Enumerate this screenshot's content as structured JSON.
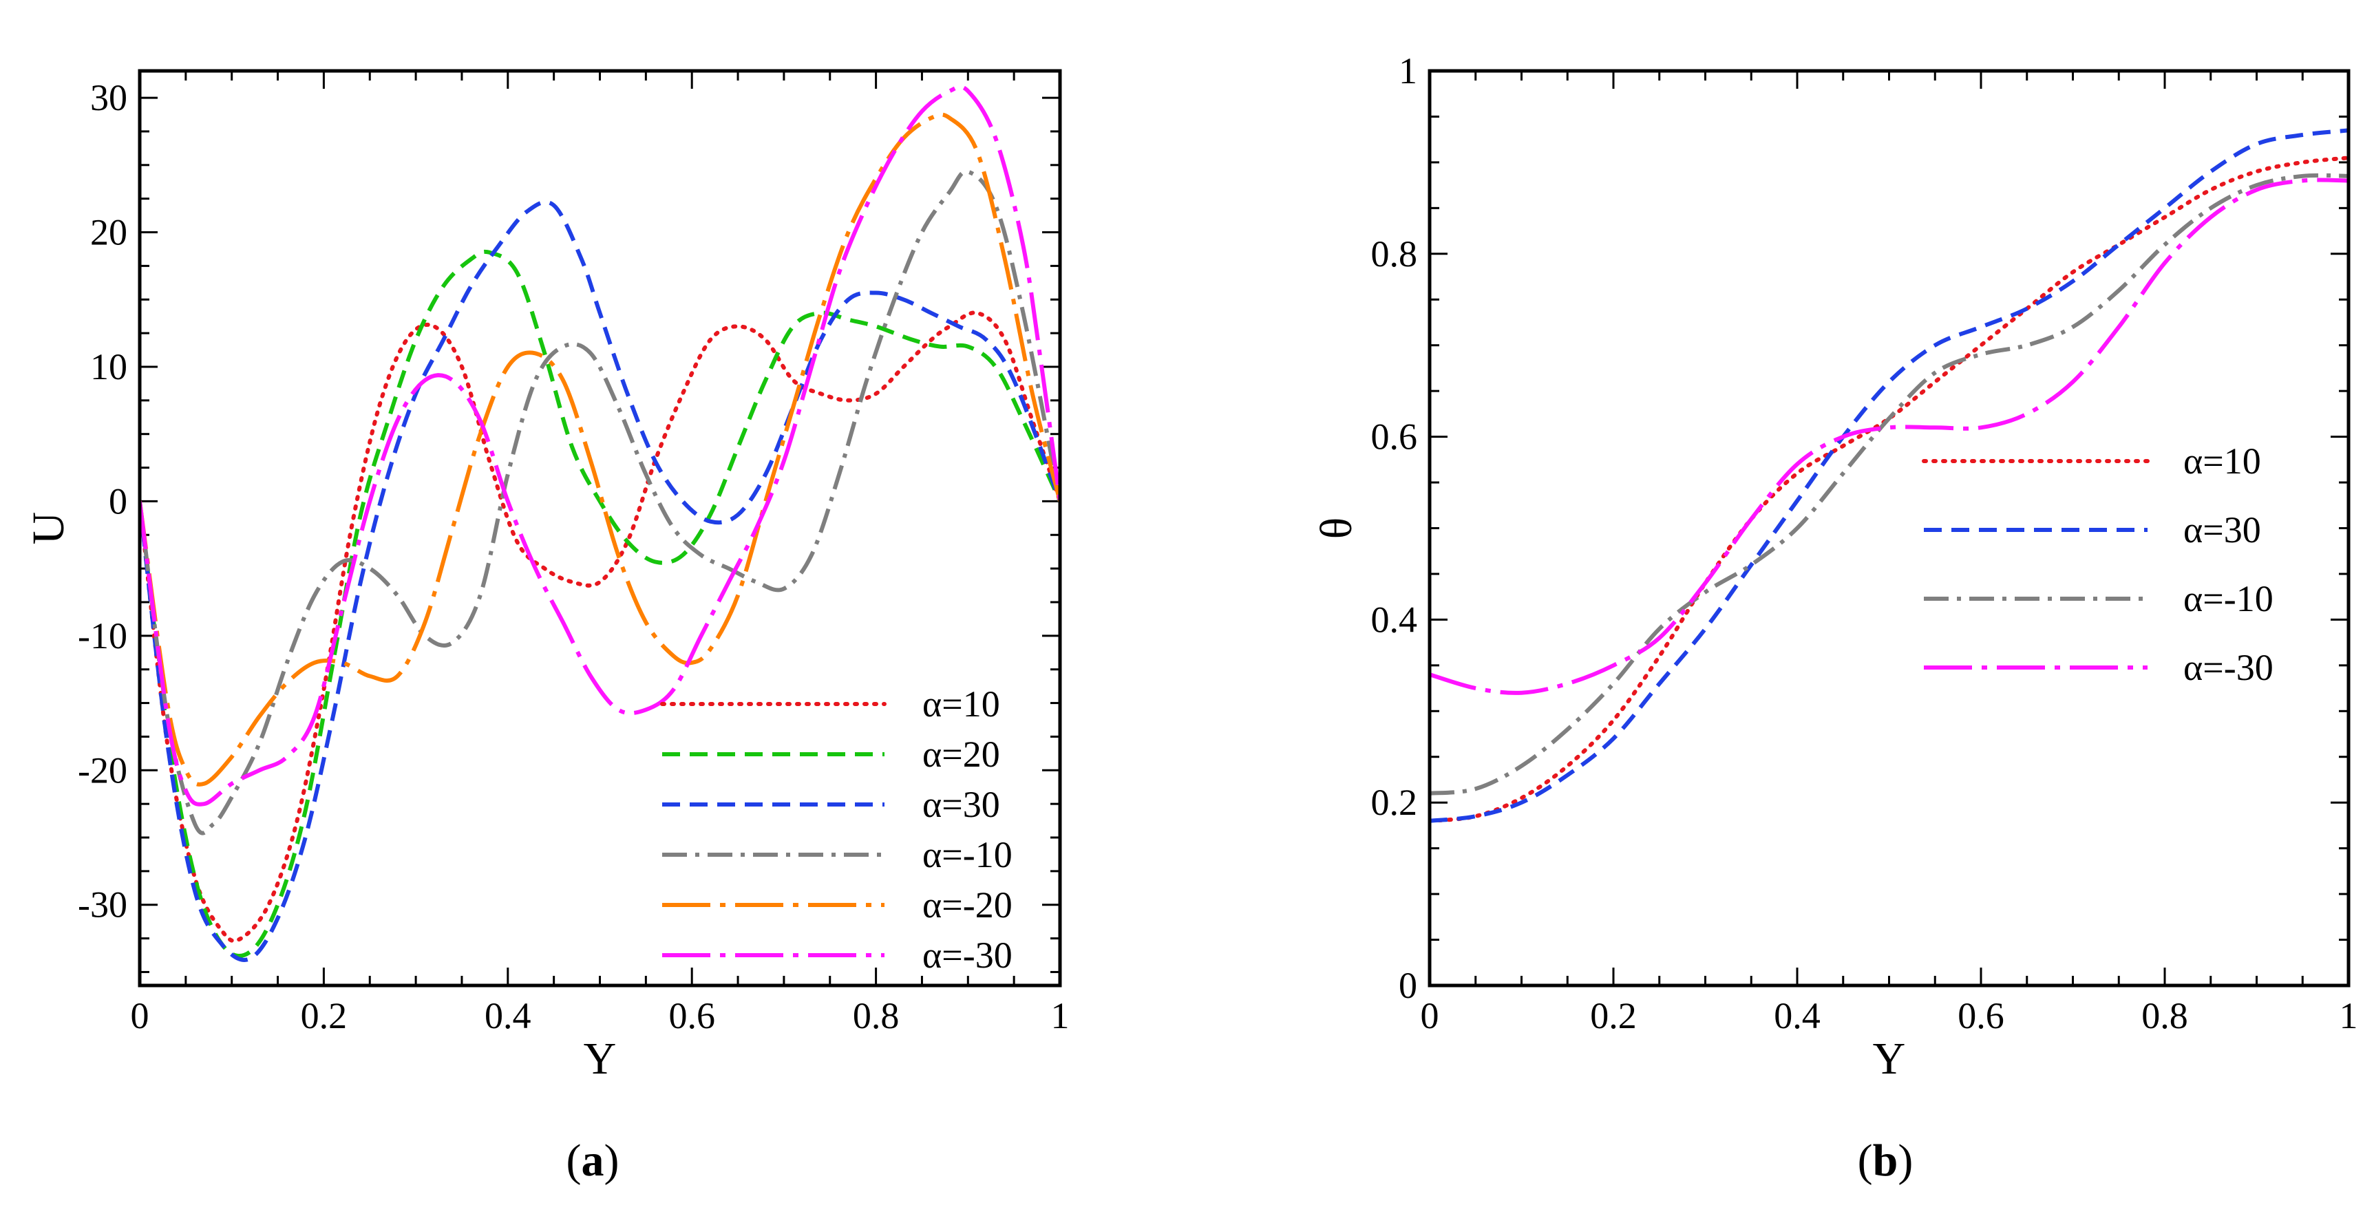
{
  "chart_data": [
    {
      "id": "a",
      "type": "line",
      "caption": {
        "open": "(",
        "letter": "a",
        "close": ")"
      },
      "xlabel": "Y",
      "ylabel": "U",
      "xlim": [
        0,
        1
      ],
      "ylim": [
        -36,
        32
      ],
      "xticks": [
        0,
        0.2,
        0.4,
        0.6,
        0.8,
        1
      ],
      "xtick_labels": [
        "0",
        "0.2",
        "0.4",
        "0.6",
        "0.8",
        "1"
      ],
      "yticks": [
        -30,
        -20,
        -10,
        0,
        10,
        20,
        30
      ],
      "ytick_labels": [
        "-30",
        "-20",
        "-10",
        "0",
        "10",
        "20",
        "30"
      ],
      "legend_position": "bottom-right",
      "series": [
        {
          "name": "α=10",
          "color": "#e8161d",
          "style": "dotted",
          "x": [
            0,
            0.03,
            0.06,
            0.09,
            0.11,
            0.14,
            0.17,
            0.2,
            0.23,
            0.26,
            0.29,
            0.32,
            0.35,
            0.38,
            0.41,
            0.44,
            0.47,
            0.5,
            0.53,
            0.56,
            0.59,
            0.62,
            0.65,
            0.68,
            0.71,
            0.74,
            0.77,
            0.8,
            0.83,
            0.86,
            0.88,
            0.91,
            0.94,
            0.97,
            1.0
          ],
          "y": [
            0,
            -18,
            -28,
            -32,
            -32.5,
            -30,
            -24,
            -14,
            -2,
            7,
            12,
            13,
            10,
            3,
            -3,
            -5,
            -6,
            -6,
            -3,
            3,
            8,
            12,
            13,
            12,
            9,
            8,
            7.5,
            8,
            10,
            12,
            13,
            14,
            12,
            6,
            0
          ]
        },
        {
          "name": "α=20",
          "color": "#16c40d",
          "style": "dashed",
          "x": [
            0,
            0.03,
            0.06,
            0.09,
            0.12,
            0.15,
            0.18,
            0.21,
            0.24,
            0.27,
            0.3,
            0.33,
            0.36,
            0.38,
            0.41,
            0.44,
            0.47,
            0.5,
            0.53,
            0.56,
            0.59,
            0.62,
            0.65,
            0.68,
            0.71,
            0.74,
            0.77,
            0.8,
            0.84,
            0.87,
            0.9,
            0.93,
            0.96,
            1.0
          ],
          "y": [
            0,
            -17,
            -28,
            -33,
            -33.5,
            -30,
            -23,
            -12,
            -1,
            6,
            12,
            16,
            18,
            18.5,
            17,
            11,
            4,
            0,
            -3,
            -4.5,
            -4,
            -1,
            4,
            9,
            13,
            14,
            13.5,
            13,
            12,
            11.5,
            11.5,
            10,
            6,
            0
          ]
        },
        {
          "name": "α=30",
          "color": "#1f3fe6",
          "style": "dashed",
          "x": [
            0,
            0.03,
            0.06,
            0.09,
            0.12,
            0.15,
            0.18,
            0.21,
            0.24,
            0.27,
            0.3,
            0.33,
            0.36,
            0.39,
            0.42,
            0.45,
            0.48,
            0.5,
            0.53,
            0.56,
            0.59,
            0.62,
            0.65,
            0.68,
            0.71,
            0.74,
            0.77,
            0.8,
            0.83,
            0.86,
            0.89,
            0.92,
            0.95,
            1.0
          ],
          "y": [
            0,
            -18,
            -29,
            -33,
            -34,
            -31,
            -25,
            -16,
            -6,
            2,
            8,
            12,
            16,
            19,
            21.5,
            22,
            18,
            14,
            8,
            3,
            0,
            -1.5,
            -1,
            2,
            7,
            12,
            15,
            15.5,
            15,
            14,
            13,
            12,
            9,
            0
          ]
        },
        {
          "name": "α=-10",
          "color": "#7f7f7f",
          "style": "dashdot",
          "x": [
            0,
            0.03,
            0.06,
            0.08,
            0.1,
            0.13,
            0.16,
            0.19,
            0.22,
            0.25,
            0.28,
            0.31,
            0.34,
            0.37,
            0.4,
            0.43,
            0.46,
            0.49,
            0.52,
            0.55,
            0.58,
            0.61,
            0.64,
            0.67,
            0.7,
            0.73,
            0.76,
            0.79,
            0.82,
            0.85,
            0.88,
            0.9,
            0.93,
            0.96,
            1.0
          ],
          "y": [
            0,
            -16,
            -24,
            -24,
            -22,
            -18,
            -12,
            -7,
            -4.5,
            -5,
            -7,
            -10,
            -10.5,
            -7,
            2,
            9,
            11.5,
            11,
            7,
            2,
            -2,
            -4,
            -5,
            -6,
            -6.5,
            -4,
            2,
            9,
            15,
            20,
            23,
            24.5,
            22,
            14,
            0
          ]
        },
        {
          "name": "α=-20",
          "color": "#ff8000",
          "style": "longdashdot",
          "x": [
            0,
            0.03,
            0.05,
            0.07,
            0.1,
            0.13,
            0.16,
            0.19,
            0.22,
            0.25,
            0.28,
            0.31,
            0.34,
            0.37,
            0.4,
            0.43,
            0.46,
            0.49,
            0.52,
            0.55,
            0.58,
            0.6,
            0.62,
            0.65,
            0.68,
            0.71,
            0.74,
            0.77,
            0.8,
            0.83,
            0.86,
            0.88,
            0.91,
            0.94,
            0.97,
            1.0
          ],
          "y": [
            0,
            -15,
            -20,
            -21,
            -19,
            -16,
            -13.5,
            -12,
            -12,
            -13,
            -13,
            -9,
            -2,
            5,
            10,
            11,
            9,
            3,
            -4,
            -9,
            -11.5,
            -12,
            -11,
            -7,
            0,
            7,
            14,
            20,
            24,
            27,
            28.5,
            28.5,
            26,
            18,
            8,
            0
          ]
        },
        {
          "name": "α=-30",
          "color": "#ff14ff",
          "style": "longdashdot",
          "x": [
            0,
            0.03,
            0.05,
            0.07,
            0.1,
            0.13,
            0.16,
            0.19,
            0.22,
            0.25,
            0.28,
            0.31,
            0.34,
            0.37,
            0.4,
            0.43,
            0.46,
            0.49,
            0.52,
            0.55,
            0.58,
            0.61,
            0.64,
            0.67,
            0.7,
            0.73,
            0.76,
            0.79,
            0.82,
            0.85,
            0.88,
            0.9,
            0.93,
            0.96,
            0.98,
            1.0
          ],
          "y": [
            0,
            -16,
            -21.5,
            -22.5,
            -21,
            -20,
            -19,
            -16,
            -8,
            0,
            6,
            9,
            9,
            6,
            0,
            -5,
            -9,
            -13,
            -15.5,
            -15.5,
            -14,
            -10,
            -6,
            -2,
            3,
            10,
            17,
            22,
            26,
            29,
            30.5,
            30.5,
            27,
            19,
            10,
            0
          ]
        }
      ]
    },
    {
      "id": "b",
      "type": "line",
      "caption": {
        "open": "(",
        "letter": "b",
        "close": ")"
      },
      "xlabel": "Y",
      "ylabel": "θ",
      "xlim": [
        0,
        1
      ],
      "ylim": [
        0,
        1
      ],
      "xticks": [
        0,
        0.2,
        0.4,
        0.6,
        0.8,
        1
      ],
      "xtick_labels": [
        "0",
        "0.2",
        "0.4",
        "0.6",
        "0.8",
        "1"
      ],
      "yticks": [
        0,
        0.2,
        0.4,
        0.6,
        0.8,
        1
      ],
      "ytick_labels": [
        "0",
        "0.2",
        "0.4",
        "0.6",
        "0.8",
        "1"
      ],
      "legend_position": "center-right",
      "series": [
        {
          "name": "α=10",
          "color": "#e8161d",
          "style": "dotted",
          "x": [
            0,
            0.05,
            0.1,
            0.15,
            0.2,
            0.25,
            0.3,
            0.35,
            0.4,
            0.45,
            0.5,
            0.55,
            0.6,
            0.65,
            0.7,
            0.75,
            0.8,
            0.85,
            0.9,
            0.95,
            1.0
          ],
          "y": [
            0.18,
            0.185,
            0.205,
            0.24,
            0.29,
            0.36,
            0.44,
            0.51,
            0.56,
            0.59,
            0.62,
            0.66,
            0.7,
            0.74,
            0.78,
            0.81,
            0.84,
            0.87,
            0.89,
            0.9,
            0.905
          ]
        },
        {
          "name": "α=30",
          "color": "#1f3fe6",
          "style": "dashed",
          "x": [
            0,
            0.05,
            0.1,
            0.15,
            0.2,
            0.25,
            0.3,
            0.35,
            0.4,
            0.45,
            0.5,
            0.55,
            0.6,
            0.65,
            0.7,
            0.75,
            0.8,
            0.85,
            0.9,
            0.95,
            1.0
          ],
          "y": [
            0.18,
            0.185,
            0.2,
            0.23,
            0.27,
            0.33,
            0.39,
            0.46,
            0.53,
            0.6,
            0.66,
            0.7,
            0.72,
            0.74,
            0.77,
            0.81,
            0.85,
            0.89,
            0.92,
            0.93,
            0.935
          ]
        },
        {
          "name": "α=-10",
          "color": "#7f7f7f",
          "style": "dashdot",
          "x": [
            0,
            0.05,
            0.1,
            0.15,
            0.2,
            0.25,
            0.3,
            0.35,
            0.4,
            0.45,
            0.5,
            0.55,
            0.6,
            0.65,
            0.7,
            0.75,
            0.8,
            0.85,
            0.9,
            0.95,
            1.0
          ],
          "y": [
            0.21,
            0.215,
            0.24,
            0.28,
            0.33,
            0.39,
            0.43,
            0.46,
            0.5,
            0.56,
            0.62,
            0.67,
            0.69,
            0.7,
            0.72,
            0.76,
            0.81,
            0.85,
            0.875,
            0.885,
            0.885
          ]
        },
        {
          "name": "α=-30",
          "color": "#ff14ff",
          "style": "longdashdot",
          "x": [
            0,
            0.05,
            0.1,
            0.15,
            0.2,
            0.25,
            0.3,
            0.35,
            0.4,
            0.45,
            0.5,
            0.55,
            0.6,
            0.65,
            0.7,
            0.75,
            0.8,
            0.85,
            0.9,
            0.95,
            1.0
          ],
          "y": [
            0.34,
            0.325,
            0.32,
            0.33,
            0.35,
            0.38,
            0.44,
            0.51,
            0.57,
            0.6,
            0.61,
            0.61,
            0.61,
            0.625,
            0.66,
            0.72,
            0.79,
            0.84,
            0.87,
            0.88,
            0.88
          ]
        }
      ]
    }
  ]
}
